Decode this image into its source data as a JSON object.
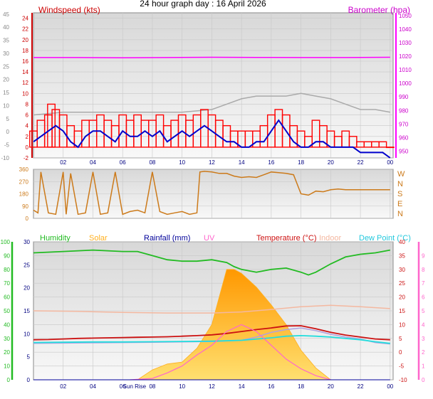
{
  "title": "24 hour graph day : 16 April 2026",
  "time_ticks": [
    "02",
    "04",
    "06",
    "08",
    "10",
    "12",
    "14",
    "16",
    "18",
    "20",
    "22",
    "00"
  ],
  "colors": {
    "wind_red": "#ff0000",
    "wind_blue": "#0000cc",
    "wind_gray": "#aaaaaa",
    "baro": "#ff00ff",
    "direction": "#cc7a1a",
    "humidity": "#22bb22",
    "solar": "#ffb020",
    "rainfall": "#000099",
    "uv": "#ff66cc",
    "temperature": "#cc1111",
    "indoor": "#f4b8a0",
    "dewpoint": "#22dddd",
    "dewpoint_title": "#22c8dd"
  },
  "chart_data": [
    {
      "type": "line",
      "name": "wind-barometer",
      "x_hours_range": [
        0,
        24.2
      ],
      "y_left_title": "Windspeed (kts)",
      "y_right_title": "Barometer (hpa)",
      "y_left_ticks": [
        "-2",
        "0",
        "2",
        "4",
        "6",
        "8",
        "10",
        "12",
        "14",
        "16",
        "18",
        "20",
        "22",
        "24"
      ],
      "y_left_range": [
        -2,
        25
      ],
      "y_left2_ticks": [
        "-10",
        "-5",
        "0",
        "5",
        "10",
        "15",
        "20",
        "25",
        "30",
        "35",
        "40",
        "45"
      ],
      "y_right_ticks": [
        "950",
        "960",
        "970",
        "980",
        "990",
        "1000",
        "1010",
        "1020",
        "1030",
        "1040",
        "1050"
      ],
      "y_right_range": [
        945,
        1052
      ],
      "series": [
        {
          "key": "gust",
          "x": [
            0,
            0.5,
            1,
            1.2,
            1.5,
            2,
            2.5,
            3,
            3.5,
            4,
            4.5,
            5,
            5.5,
            6,
            6.5,
            7,
            7.5,
            8,
            8.5,
            9,
            9.5,
            10,
            10.5,
            11,
            11.5,
            12,
            12.5,
            13,
            13.5,
            14,
            14.5,
            15,
            15.5,
            16,
            16.5,
            17,
            17.5,
            18,
            18.5,
            19,
            19.5,
            20,
            20.5,
            21,
            21.5,
            22,
            22.5,
            23,
            23.5,
            24
          ],
          "values": [
            3,
            5,
            6,
            8,
            7,
            6,
            4,
            3,
            5,
            5,
            6,
            5,
            4,
            6,
            5,
            6,
            5,
            5,
            6,
            4,
            5,
            6,
            5,
            6,
            7,
            6,
            5,
            4,
            3,
            3,
            3,
            3,
            4,
            6,
            7,
            6,
            4,
            3,
            2,
            5,
            4,
            3,
            2,
            3,
            2,
            1,
            1,
            1,
            1,
            0
          ]
        },
        {
          "key": "average",
          "x": [
            0,
            0.5,
            1,
            1.5,
            2,
            2.5,
            3,
            3.5,
            4,
            4.5,
            5,
            5.5,
            6,
            6.5,
            7,
            7.5,
            8,
            8.5,
            9,
            9.5,
            10,
            10.5,
            11,
            11.5,
            12,
            12.5,
            13,
            13.5,
            14,
            14.5,
            15,
            15.5,
            16,
            16.5,
            17,
            17.5,
            18,
            18.5,
            19,
            19.5,
            20,
            20.5,
            21,
            21.5,
            22,
            22.5,
            23,
            23.5,
            24
          ],
          "values": [
            1,
            2,
            3,
            4,
            3,
            1,
            0,
            2,
            3,
            3,
            2,
            1,
            3,
            2,
            2,
            3,
            2,
            3,
            1,
            2,
            3,
            2,
            3,
            4,
            3,
            2,
            1,
            1,
            0,
            0,
            1,
            1,
            3,
            5,
            3,
            1,
            0,
            0,
            1,
            1,
            0,
            0,
            0,
            0,
            -1,
            -1,
            -1,
            -1,
            -2
          ]
        },
        {
          "key": "gray",
          "x": [
            0,
            2,
            4,
            6,
            8,
            10,
            12,
            13,
            14,
            15,
            16,
            17,
            18,
            19,
            20,
            21,
            22,
            23,
            24
          ],
          "values": [
            6,
            6.5,
            6.5,
            6.5,
            6.5,
            6.5,
            7,
            8,
            9,
            9.5,
            9.5,
            9.5,
            10,
            9.5,
            9,
            8,
            7,
            7,
            6.5
          ]
        },
        {
          "key": "barometer",
          "x": [
            0,
            3,
            6,
            9,
            12,
            15,
            18,
            21,
            24
          ],
          "values": [
            1019,
            1019,
            1018.8,
            1019,
            1019.2,
            1019.1,
            1019,
            1019,
            1019.2
          ]
        }
      ]
    },
    {
      "type": "scatter",
      "name": "wind-direction",
      "x_hours_range": [
        0,
        24.2
      ],
      "y_ticks": [
        "0",
        "90",
        "180",
        "270",
        "360"
      ],
      "y_range": [
        0,
        360
      ],
      "compass_labels": [
        "W",
        "N",
        "S",
        "E",
        "N"
      ],
      "series": [
        {
          "key": "direction",
          "x": [
            0,
            0.3,
            0.5,
            1,
            1.5,
            2,
            2.2,
            2.5,
            3,
            3.5,
            4,
            4.5,
            5,
            5.5,
            6,
            6.5,
            7,
            7.5,
            8,
            8.5,
            9,
            9.5,
            10,
            10.5,
            11,
            11.2,
            11.5,
            12,
            12.5,
            13,
            13.5,
            14,
            14.5,
            15,
            15.5,
            16,
            16.5,
            17,
            17.5,
            18,
            18.5,
            19,
            19.5,
            20,
            20.5,
            21,
            22,
            23,
            24
          ],
          "values": [
            60,
            40,
            340,
            40,
            30,
            340,
            30,
            330,
            30,
            40,
            340,
            30,
            40,
            340,
            30,
            50,
            60,
            40,
            340,
            50,
            30,
            40,
            50,
            30,
            40,
            340,
            345,
            340,
            330,
            330,
            310,
            300,
            305,
            300,
            320,
            340,
            335,
            330,
            320,
            180,
            170,
            200,
            195,
            210,
            215,
            210,
            210,
            210,
            210
          ]
        }
      ]
    },
    {
      "type": "line",
      "name": "temperature-humidity",
      "x_hours_range": [
        0,
        24.2
      ],
      "headers": [
        "Humidity",
        "Solar",
        "Rainfall (mm)",
        "UV",
        "Temperature (°C)",
        "Indoor",
        "Dew Point (°C)"
      ],
      "x_tick_extra": [
        "Sun Rise"
      ],
      "y_humidity_ticks": [
        "0",
        "10",
        "20",
        "30",
        "40",
        "50",
        "60",
        "70",
        "80",
        "90",
        "100"
      ],
      "y_rain_ticks": [
        "0",
        "5",
        "10",
        "15",
        "20",
        "25",
        "30"
      ],
      "y_temp_ticks": [
        "-10",
        "-5",
        "0",
        "5",
        "10",
        "15",
        "20",
        "25",
        "30",
        "35",
        "40"
      ],
      "y_uv_ticks": [
        "0",
        "1",
        "2",
        "3",
        "4",
        "5",
        "6",
        "7",
        "8",
        "9"
      ],
      "y_temp_range": [
        -10,
        40
      ],
      "y_humidity_range": [
        0,
        100
      ],
      "series": [
        {
          "key": "humidity",
          "x": [
            0,
            2,
            4,
            6,
            7,
            8,
            9,
            10,
            11,
            12,
            13,
            13.5,
            14,
            15,
            16,
            17,
            18,
            18.5,
            19,
            20,
            21,
            22,
            23,
            24
          ],
          "values": [
            92,
            93,
            94,
            93,
            93,
            90,
            87,
            86,
            86,
            87,
            85,
            82,
            80,
            78,
            80,
            81,
            78,
            76,
            78,
            84,
            89,
            91,
            92,
            94
          ]
        },
        {
          "key": "temperature",
          "x": [
            0,
            1,
            2,
            3,
            4,
            5,
            6,
            7,
            8,
            9,
            10,
            11,
            12,
            13,
            14,
            15,
            16,
            17,
            18,
            19,
            20,
            21,
            22,
            23,
            24
          ],
          "values": [
            4.5,
            4.6,
            4.8,
            5,
            5.1,
            5.2,
            5.3,
            5.4,
            5.5,
            5.6,
            5.8,
            6,
            6.3,
            6.8,
            7.5,
            8.2,
            8.8,
            9.5,
            9.6,
            8.5,
            7.2,
            6.2,
            5.5,
            4.8,
            4.5
          ]
        },
        {
          "key": "indoor",
          "x": [
            0,
            3,
            6,
            9,
            12,
            14,
            16,
            18,
            20,
            22,
            24
          ],
          "values": [
            15,
            14.8,
            14.4,
            14.2,
            14.2,
            14.6,
            15.5,
            16.5,
            17,
            16.5,
            15.8
          ]
        },
        {
          "key": "dewpoint",
          "x": [
            0,
            2,
            4,
            6,
            8,
            10,
            12,
            14,
            16,
            17,
            18,
            19,
            20,
            21,
            22,
            23,
            24
          ],
          "values": [
            3.5,
            3.6,
            3.7,
            3.7,
            3.8,
            3.9,
            4,
            4.3,
            5.2,
            5.8,
            6,
            5.8,
            5.5,
            5,
            4.5,
            3.8,
            3.2
          ]
        },
        {
          "key": "rainfall",
          "x": [
            0,
            2,
            4,
            6,
            8,
            10,
            12,
            14,
            16,
            18,
            20,
            22,
            24
          ],
          "values": [
            0,
            0,
            0,
            0,
            0,
            0,
            0,
            0,
            0,
            0,
            0,
            0,
            0
          ]
        },
        {
          "key": "solar",
          "x": [
            7,
            8,
            9,
            10,
            11,
            12,
            12.5,
            13,
            13.5,
            14,
            15,
            16,
            17,
            18,
            19,
            20
          ],
          "values": [
            0,
            50,
            80,
            90,
            160,
            280,
            420,
            560,
            560,
            540,
            470,
            380,
            280,
            150,
            60,
            0
          ]
        },
        {
          "key": "uv",
          "x": [
            6.5,
            8,
            9,
            10,
            11,
            12,
            13,
            14,
            15,
            16,
            17,
            18,
            19,
            20
          ],
          "values": [
            0,
            0.1,
            0.5,
            1,
            1.8,
            2.5,
            3.5,
            4,
            3.5,
            2.5,
            1.5,
            0.8,
            0.3,
            0
          ]
        },
        {
          "key": "lilac",
          "x": [
            0,
            2,
            4,
            6,
            8,
            10,
            12,
            14,
            15,
            16,
            17,
            18,
            19,
            20,
            21,
            22,
            23,
            24
          ],
          "values": [
            3.2,
            3.3,
            3.4,
            3.5,
            3.6,
            3.7,
            3.9,
            4.3,
            5.5,
            7.2,
            8.2,
            8.8,
            7.8,
            6.5,
            5.5,
            4.8,
            3.5,
            3
          ]
        }
      ]
    }
  ]
}
